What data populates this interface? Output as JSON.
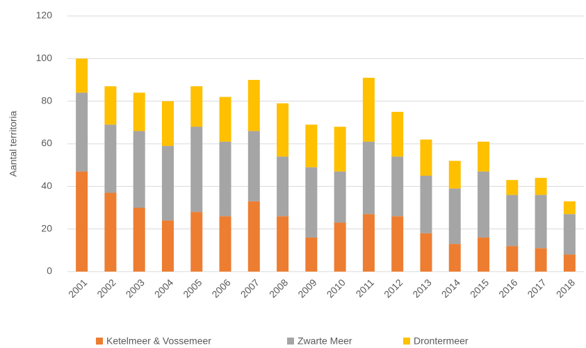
{
  "chart_data": {
    "type": "stacked_bar",
    "y_axis_label": "Aantal territoria",
    "categories": [
      "2001",
      "2002",
      "2003",
      "2004",
      "2005",
      "2006",
      "2007",
      "2008",
      "2009",
      "2010",
      "2011",
      "2012",
      "2013",
      "2014",
      "2015",
      "2016",
      "2017",
      "2018"
    ],
    "series": [
      {
        "name": "Ketelmeer & Vossemeer",
        "color": "#ed7d31",
        "values": [
          47,
          37,
          30,
          24,
          28,
          26,
          33,
          26,
          16,
          23,
          27,
          26,
          18,
          13,
          16,
          12,
          11,
          8
        ]
      },
      {
        "name": "Zwarte Meer",
        "color": "#a5a5a5",
        "values": [
          37,
          32,
          36,
          35,
          40,
          35,
          33,
          28,
          33,
          24,
          34,
          28,
          27,
          26,
          31,
          24,
          25,
          19
        ]
      },
      {
        "name": "Drontermeer",
        "color": "#ffc000",
        "values": [
          16,
          18,
          18,
          21,
          19,
          21,
          24,
          25,
          20,
          21,
          30,
          21,
          17,
          13,
          14,
          7,
          8,
          6
        ]
      }
    ],
    "ylim": [
      0,
      120
    ],
    "yticks": [
      0,
      20,
      40,
      60,
      80,
      100,
      120
    ],
    "grid": true,
    "legend": "bottom"
  }
}
